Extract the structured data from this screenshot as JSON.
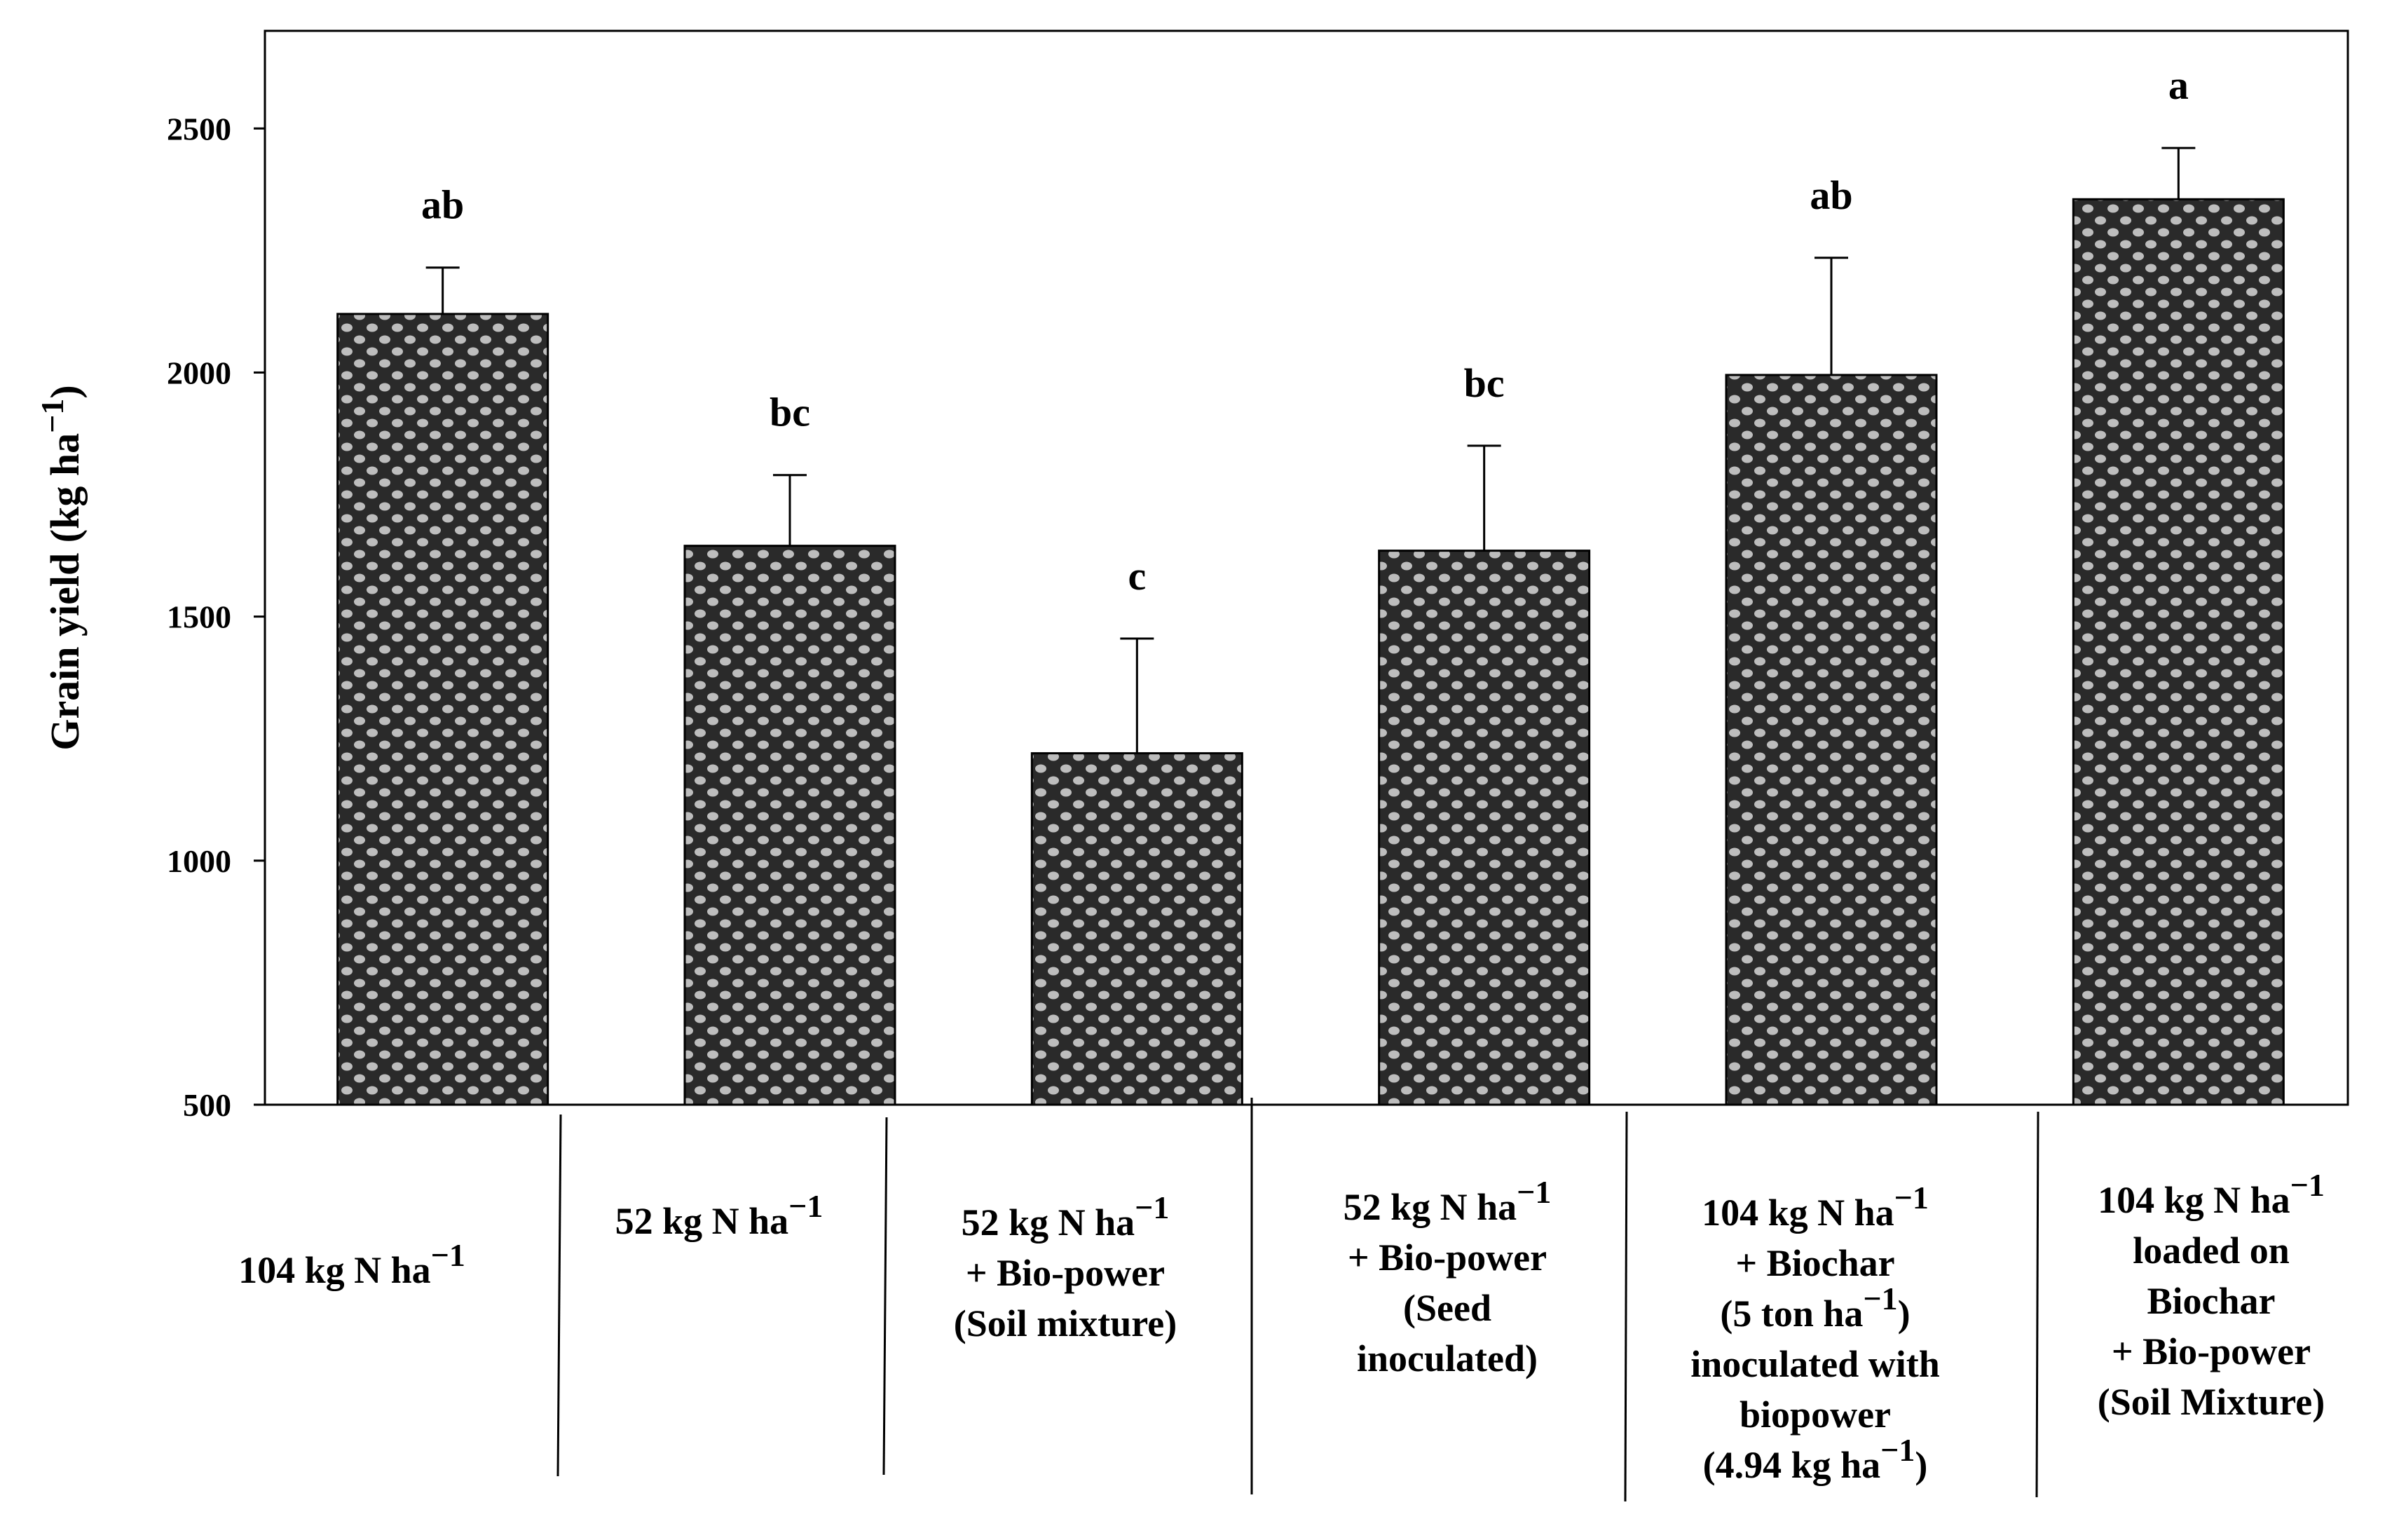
{
  "chart_data": {
    "type": "bar",
    "title": "",
    "xlabel": "",
    "ylabel": "Grain yield (kg ha",
    "ylabel_superscript": "−1",
    "ylabel_close": ")",
    "ylim": [
      500,
      2700
    ],
    "yticks": [
      "500",
      "1000",
      "1500",
      "2000",
      "2500"
    ],
    "grid": false,
    "bar_fill_colors": [
      "#2a2a2a",
      "#bdbdbd"
    ],
    "categories": [
      {
        "lines": [
          [
            "104 kg N ha",
            "−1",
            ""
          ]
        ]
      },
      {
        "lines": [
          [
            "52 kg N ha",
            "−1",
            ""
          ]
        ]
      },
      {
        "lines": [
          [
            "52 kg N ha",
            "−1",
            ""
          ],
          [
            "+ Bio-power",
            "",
            ""
          ],
          [
            "(Soil mixture)",
            "",
            ""
          ]
        ]
      },
      {
        "lines": [
          [
            "52 kg N ha",
            "−1",
            ""
          ],
          [
            "+ Bio-power",
            "",
            ""
          ],
          [
            "(Seed",
            "",
            ""
          ],
          [
            "inoculated)",
            "",
            ""
          ]
        ]
      },
      {
        "lines": [
          [
            "104 kg N ha",
            "−1",
            ""
          ],
          [
            "+ Biochar",
            "",
            ""
          ],
          [
            "(5 ton ha",
            "−1",
            ")"
          ],
          [
            "inoculated with",
            "",
            ""
          ],
          [
            "biopower",
            "",
            ""
          ],
          [
            "(4.94 kg ha",
            "−1",
            ")"
          ]
        ]
      },
      {
        "lines": [
          [
            "104 kg N ha",
            "−1",
            ""
          ],
          [
            "loaded on",
            "",
            ""
          ],
          [
            "Biochar",
            "",
            ""
          ],
          [
            "+ Bio-power",
            "",
            ""
          ],
          [
            "(Soil Mixture)",
            "",
            ""
          ]
        ]
      }
    ],
    "values": [
      2120,
      1645,
      1220,
      1635,
      1995,
      2355
    ],
    "errors": [
      95,
      145,
      235,
      215,
      240,
      105
    ],
    "significance": [
      "ab",
      "bc",
      "c",
      "bc",
      "ab",
      "a"
    ]
  }
}
